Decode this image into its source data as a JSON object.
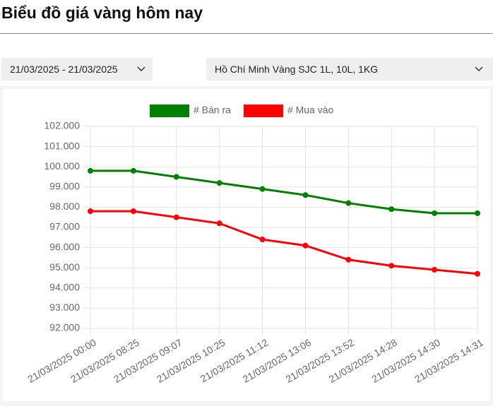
{
  "header": {
    "title": "Biểu đồ giá vàng hôm nay"
  },
  "filters": {
    "date_range": "21/03/2025 - 21/03/2025",
    "product": "Hồ Chí Minh Vàng SJC 1L, 10L, 1KG"
  },
  "chart_data": {
    "type": "line",
    "categories": [
      "21/03/2025 00:00",
      "21/03/2025 08:25",
      "21/03/2025 09:07",
      "21/03/2025 10:25",
      "21/03/2025 11:12",
      "21/03/2025 13:06",
      "21/03/2025 13:52",
      "21/03/2025 14:28",
      "21/03/2025 14:30",
      "21/03/2025 14:31"
    ],
    "series": [
      {
        "name": "# Bán ra",
        "color": "#008000",
        "values": [
          99800,
          99800,
          99500,
          99200,
          98900,
          98600,
          98200,
          97900,
          97700,
          97700
        ]
      },
      {
        "name": "# Mua vào",
        "color": "#ff0000",
        "values": [
          97800,
          97800,
          97500,
          97200,
          96400,
          96100,
          95400,
          95100,
          94900,
          94700
        ]
      }
    ],
    "ylim": [
      92000,
      102000
    ],
    "yticks": [
      {
        "value": 92000,
        "label": "92.000"
      },
      {
        "value": 93000,
        "label": "93.000"
      },
      {
        "value": 94000,
        "label": "94.000"
      },
      {
        "value": 95000,
        "label": "95.000"
      },
      {
        "value": 96000,
        "label": "96.000"
      },
      {
        "value": 97000,
        "label": "97.000"
      },
      {
        "value": 98000,
        "label": "98.000"
      },
      {
        "value": 99000,
        "label": "99.000"
      },
      {
        "value": 100000,
        "label": "100.000"
      },
      {
        "value": 101000,
        "label": "101.000"
      },
      {
        "value": 102000,
        "label": "102.000"
      }
    ],
    "grid": true,
    "legend": "top"
  }
}
